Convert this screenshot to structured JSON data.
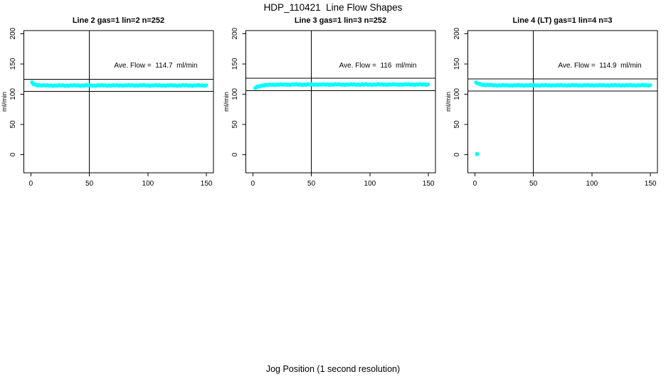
{
  "title": "HDP_110421  Line Flow Shapes",
  "xlabel": "Jog Position (1 second resolution)",
  "colors": {
    "points": "#00ffff",
    "axis": "#000000",
    "background": "#ffffff",
    "text": "#000000"
  },
  "chart_data": [
    {
      "type": "scatter",
      "title": "Line 2 gas=1 lin=2 n=252",
      "ylabel": "ml/min",
      "n": 252,
      "ave_flow": 114.7,
      "annotation": "Ave. Flow =  114.7  ml/min",
      "x_ticks": [
        0,
        50,
        100,
        150
      ],
      "y_ticks": [
        0,
        50,
        100,
        150,
        200
      ],
      "xlim": [
        -6,
        156
      ],
      "ylim": [
        -30,
        205
      ],
      "vline_x": 50,
      "hlines_y": [
        124.7,
        104.7
      ],
      "band": {
        "x_start": 1,
        "x_end": 150,
        "step": 0.6,
        "control_points": [
          [
            1,
            119
          ],
          [
            2,
            117
          ],
          [
            3,
            116
          ],
          [
            5,
            115.2
          ],
          [
            10,
            114.4
          ],
          [
            20,
            114.2
          ],
          [
            80,
            114.4
          ],
          [
            150,
            114.3
          ]
        ]
      },
      "outliers": []
    },
    {
      "type": "scatter",
      "title": "Line 3 gas=1 lin=3 n=252",
      "ylabel": "ml/min",
      "n": 252,
      "ave_flow": 116,
      "annotation": "Ave. Flow =  116  ml/min",
      "x_ticks": [
        0,
        50,
        100,
        150
      ],
      "y_ticks": [
        0,
        50,
        100,
        150,
        200
      ],
      "xlim": [
        -6,
        156
      ],
      "ylim": [
        -30,
        205
      ],
      "vline_x": 50,
      "hlines_y": [
        126,
        106
      ],
      "band": {
        "x_start": 2,
        "x_end": 150,
        "step": 0.6,
        "control_points": [
          [
            2,
            110
          ],
          [
            3,
            111.5
          ],
          [
            5,
            113
          ],
          [
            8,
            114.5
          ],
          [
            15,
            115.4
          ],
          [
            30,
            115.8
          ],
          [
            150,
            115.9
          ]
        ]
      },
      "outliers": []
    },
    {
      "type": "scatter",
      "title": "Line 4 (LT) gas=1 lin=4 n=3",
      "ylabel": "ml/min",
      "n": 3,
      "ave_flow": 114.9,
      "annotation": "Ave. Flow =  114.9  ml/min",
      "x_ticks": [
        0,
        50,
        100,
        150
      ],
      "y_ticks": [
        0,
        50,
        100,
        150,
        200
      ],
      "xlim": [
        -6,
        156
      ],
      "ylim": [
        -30,
        205
      ],
      "vline_x": 50,
      "hlines_y": [
        124.9,
        104.9
      ],
      "band": {
        "x_start": 1,
        "x_end": 150,
        "step": 0.6,
        "control_points": [
          [
            1,
            118.5
          ],
          [
            2,
            118
          ],
          [
            4,
            116.8
          ],
          [
            8,
            115.2
          ],
          [
            20,
            114.5
          ],
          [
            150,
            114.6
          ]
        ]
      },
      "outliers": [
        [
          2,
          1
        ]
      ]
    }
  ]
}
